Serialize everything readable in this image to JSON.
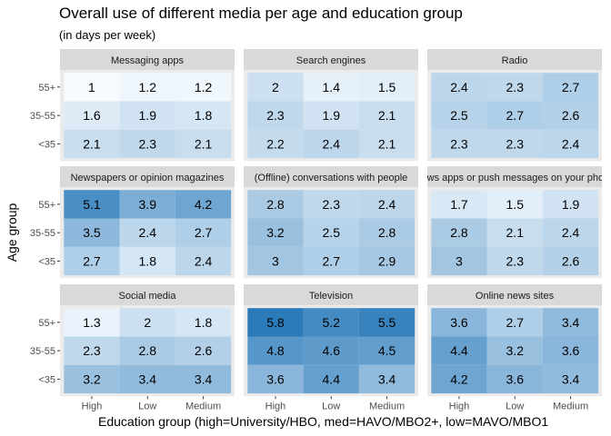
{
  "chart_data": {
    "type": "heatmap",
    "title": "Overall use of different media per age and education group",
    "subtitle": "(in days per week)",
    "xlabel": "Education group (high=University/HBO, med=HAVO/MBO2+, low=MAVO/MBO1",
    "ylabel": "Age group",
    "x_categories": [
      "High",
      "Low",
      "Medium"
    ],
    "y_categories": [
      "55+",
      "35-55",
      "<35"
    ],
    "fill_range": [
      1,
      5.8
    ],
    "colors": {
      "low": "#f7fbff",
      "high": "#2b7bba",
      "panel_bg": "#ebebeb",
      "strip_bg": "#d9d9d9"
    },
    "panels": [
      {
        "name": "Messaging apps",
        "values": [
          [
            1,
            1.2,
            1.2
          ],
          [
            1.6,
            1.9,
            1.8
          ],
          [
            2.1,
            2.3,
            2.1
          ]
        ]
      },
      {
        "name": "Search engines",
        "values": [
          [
            2,
            1.4,
            1.5
          ],
          [
            2.3,
            1.9,
            2.1
          ],
          [
            2.2,
            2.4,
            2.1
          ]
        ]
      },
      {
        "name": "Radio",
        "values": [
          [
            2.4,
            2.3,
            2.7
          ],
          [
            2.5,
            2.7,
            2.6
          ],
          [
            2.3,
            2.3,
            2.4
          ]
        ]
      },
      {
        "name": "Newspapers or opinion magazines",
        "values": [
          [
            5.1,
            3.9,
            4.2
          ],
          [
            3.5,
            2.4,
            2.7
          ],
          [
            2.7,
            1.8,
            2.4
          ]
        ]
      },
      {
        "name": "(Offline) conversations with people",
        "values": [
          [
            2.8,
            2.3,
            2.4
          ],
          [
            3.2,
            2.5,
            2.8
          ],
          [
            3,
            2.7,
            2.9
          ]
        ]
      },
      {
        "name": "News apps or push messages on your phone",
        "values": [
          [
            1.7,
            1.5,
            1.9
          ],
          [
            2.8,
            2.1,
            2.4
          ],
          [
            3,
            2.3,
            2.6
          ]
        ]
      },
      {
        "name": "Social media",
        "values": [
          [
            1.3,
            2,
            1.8
          ],
          [
            2.3,
            2.8,
            2.6
          ],
          [
            3.2,
            3.4,
            3.4
          ]
        ]
      },
      {
        "name": "Television",
        "values": [
          [
            5.8,
            5.2,
            5.5
          ],
          [
            4.8,
            4.6,
            4.5
          ],
          [
            3.6,
            4.4,
            3.4
          ]
        ]
      },
      {
        "name": "Online news sites",
        "values": [
          [
            3.6,
            2.7,
            3.4
          ],
          [
            4.4,
            3.2,
            3.6
          ],
          [
            4.2,
            3.6,
            3.4
          ]
        ]
      }
    ]
  }
}
